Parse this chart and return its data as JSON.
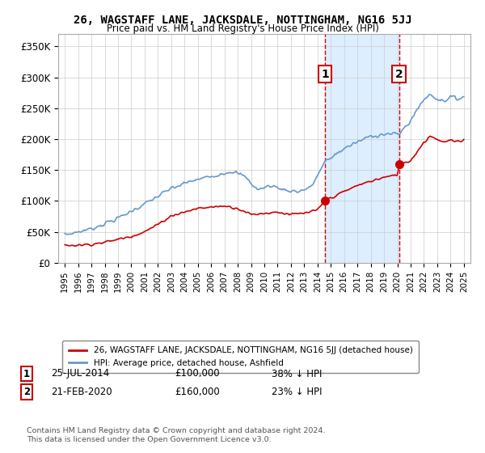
{
  "title": "26, WAGSTAFF LANE, JACKSDALE, NOTTINGHAM, NG16 5JJ",
  "subtitle": "Price paid vs. HM Land Registry's House Price Index (HPI)",
  "ylabel_ticks": [
    "£0",
    "£50K",
    "£100K",
    "£150K",
    "£200K",
    "£250K",
    "£300K",
    "£350K"
  ],
  "ytick_values": [
    0,
    50000,
    100000,
    150000,
    200000,
    250000,
    300000,
    350000
  ],
  "ylim": [
    0,
    370000
  ],
  "xlim_start": 1994.5,
  "xlim_end": 2025.5,
  "sale1_date": 2014.56,
  "sale1_price": 100000,
  "sale2_date": 2020.13,
  "sale2_price": 160000,
  "line1_color": "#cc0000",
  "line2_color": "#6699cc",
  "shading_color": "#ddeeff",
  "vline_color": "#cc0000",
  "legend_line1": "26, WAGSTAFF LANE, JACKSDALE, NOTTINGHAM, NG16 5JJ (detached house)",
  "legend_line2": "HPI: Average price, detached house, Ashfield",
  "annotation1_date": "25-JUL-2014",
  "annotation1_price": "£100,000",
  "annotation1_pct": "38% ↓ HPI",
  "annotation2_date": "21-FEB-2020",
  "annotation2_price": "£160,000",
  "annotation2_pct": "23% ↓ HPI",
  "footnote": "Contains HM Land Registry data © Crown copyright and database right 2024.\nThis data is licensed under the Open Government Licence v3.0.",
  "background_color": "#ffffff",
  "plot_bg_color": "#ffffff",
  "grid_color": "#cccccc"
}
